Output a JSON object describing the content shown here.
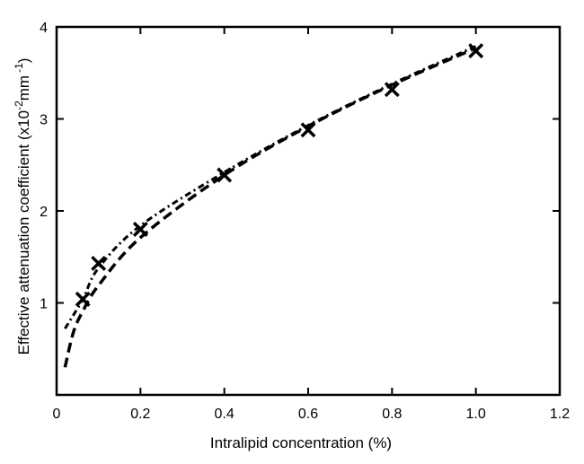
{
  "chart_data": {
    "type": "scatter",
    "title": "",
    "xlabel": "Intralipid concentration (%)",
    "ylabel_parts": {
      "main": "Effective attenuation coefficient (x10",
      "exp1": "-2",
      "mid": "mm",
      "exp2": "-1",
      "end": ")"
    },
    "xlim": [
      0,
      1.2
    ],
    "ylim": [
      0,
      4
    ],
    "x_ticks": [
      "0",
      "0.2",
      "0.4",
      "0.6",
      "0.8",
      "1.0",
      "1.2"
    ],
    "x_tick_values": [
      0,
      0.2,
      0.4,
      0.6,
      0.8,
      1.0,
      1.2
    ],
    "y_ticks": [
      "1",
      "2",
      "3",
      "4"
    ],
    "y_tick_values": [
      1,
      2,
      3,
      4
    ],
    "grid": false,
    "series": [
      {
        "marker": "x",
        "x": [
          0.0625,
          0.1,
          0.2,
          0.4,
          0.6,
          0.8,
          1.0
        ],
        "y": [
          1.04,
          1.43,
          1.8,
          2.39,
          2.88,
          3.32,
          3.74
        ]
      },
      {
        "line_style": "dash-dot",
        "x": [
          0.02,
          0.0625,
          0.1,
          0.2,
          0.4,
          0.6,
          0.8,
          1.0
        ],
        "y": [
          0.72,
          1.04,
          1.38,
          1.84,
          2.42,
          2.93,
          3.38,
          3.79
        ]
      },
      {
        "line_style": "dashed",
        "x": [
          0.02,
          0.04,
          0.0625,
          0.1,
          0.2,
          0.4,
          0.6,
          0.8,
          1.0
        ],
        "y": [
          0.3,
          0.68,
          0.91,
          1.19,
          1.71,
          2.39,
          2.92,
          3.37,
          3.77
        ]
      }
    ]
  }
}
